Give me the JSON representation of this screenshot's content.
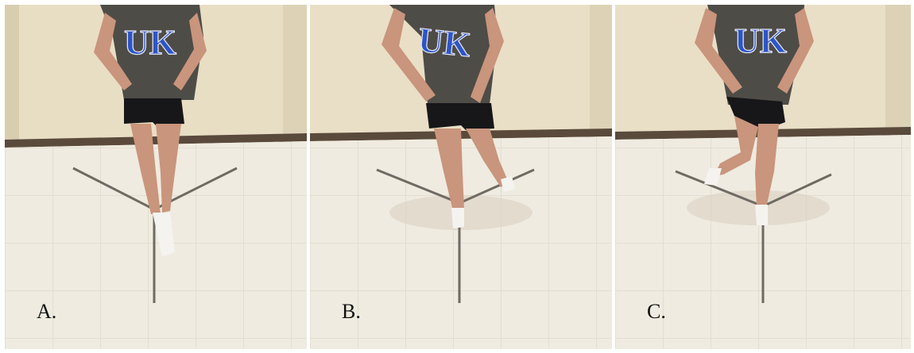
{
  "figure": {
    "panels": [
      {
        "id": "A",
        "label": "A.",
        "shirt_text": "UK"
      },
      {
        "id": "B",
        "label": "B.",
        "shirt_text": "UK"
      },
      {
        "id": "C",
        "label": "C.",
        "shirt_text": "UK"
      }
    ],
    "colors": {
      "wall": "#e9dfc6",
      "floor": "#efebe0",
      "baseboard": "#5a4a3c",
      "shirt": "#4e4c47",
      "shirt_logo": "#2c55c8",
      "shorts": "#17171a",
      "skin": "#c9957c",
      "tape": "#6f6a63"
    }
  }
}
